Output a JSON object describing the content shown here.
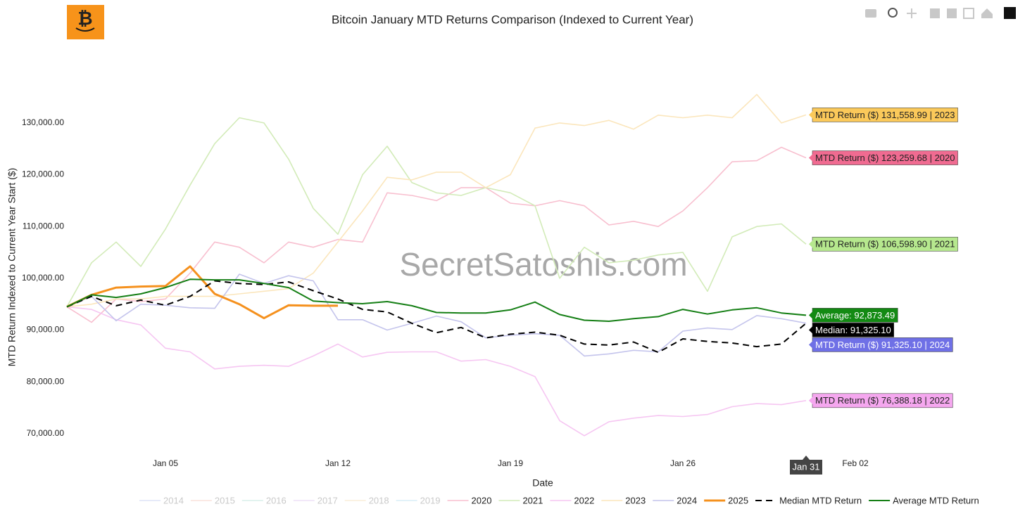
{
  "chart_data": {
    "type": "line",
    "title": "Bitcoin January MTD Returns Comparison (Indexed to Current Year)",
    "xlabel": "Date",
    "ylabel": "MTD Return Indexed to Current Year Start ($)",
    "watermark": "SecretSatoshis.com",
    "hover_label": "Jan 31",
    "legend": "bottom",
    "x": [
      "Jan 01",
      "Jan 02",
      "Jan 03",
      "Jan 04",
      "Jan 05",
      "Jan 06",
      "Jan 07",
      "Jan 08",
      "Jan 09",
      "Jan 10",
      "Jan 11",
      "Jan 12",
      "Jan 13",
      "Jan 14",
      "Jan 15",
      "Jan 16",
      "Jan 17",
      "Jan 18",
      "Jan 19",
      "Jan 20",
      "Jan 21",
      "Jan 22",
      "Jan 23",
      "Jan 24",
      "Jan 25",
      "Jan 26",
      "Jan 27",
      "Jan 28",
      "Jan 29",
      "Jan 30",
      "Jan 31"
    ],
    "xlim": [
      "Jan 01",
      "Feb 08"
    ],
    "xticks": [
      "Jan 05",
      "Jan 12",
      "Jan 19",
      "Jan 26",
      "Feb 02"
    ],
    "ylim": [
      65500,
      142200
    ],
    "yticks": [
      {
        "value": 70000,
        "label": "70,000.00"
      },
      {
        "value": 80000,
        "label": "80,000.00"
      },
      {
        "value": 90000,
        "label": "90,000.00"
      },
      {
        "value": 100000,
        "label": "100,000.00"
      },
      {
        "value": 110000,
        "label": "110,000.00"
      },
      {
        "value": 120000,
        "label": "120,000.00"
      },
      {
        "value": 130000,
        "label": "130,000.00"
      }
    ],
    "series": [
      {
        "name": "2014",
        "color": "#c9d1f2",
        "visible": false
      },
      {
        "name": "2015",
        "color": "#f7cfc4",
        "visible": false
      },
      {
        "name": "2016",
        "color": "#bfe6dc",
        "visible": false
      },
      {
        "name": "2017",
        "color": "#e3cdf2",
        "visible": false
      },
      {
        "name": "2018",
        "color": "#f8e3c0",
        "visible": false
      },
      {
        "name": "2019",
        "color": "#bfe3f2",
        "visible": false
      },
      {
        "name": "2020",
        "color": "#f8bfcf",
        "visible": true,
        "width": 1.6,
        "values": [
          94500,
          91500,
          96000,
          95500,
          96000,
          101000,
          107000,
          106000,
          103000,
          107000,
          106000,
          107500,
          107000,
          116500,
          116000,
          115000,
          117500,
          117500,
          114500,
          114000,
          115000,
          114000,
          110300,
          111000,
          110000,
          113000,
          117500,
          122500,
          122700,
          125300,
          123259.68
        ]
      },
      {
        "name": "2021",
        "color": "#d2ebb8",
        "visible": true,
        "width": 1.6,
        "values": [
          94500,
          103000,
          107000,
          102300,
          109500,
          118000,
          126000,
          131000,
          130000,
          123000,
          113500,
          108500,
          120000,
          125500,
          118500,
          116500,
          116000,
          117500,
          116500,
          114000,
          100000,
          106000,
          103000,
          103500,
          104500,
          105000,
          97500,
          108000,
          110000,
          110500,
          106598.9
        ]
      },
      {
        "name": "2022",
        "color": "#f6c6f2",
        "visible": true,
        "width": 1.6,
        "values": [
          94500,
          94000,
          92000,
          91000,
          86500,
          85800,
          82500,
          83000,
          83200,
          83000,
          85000,
          87300,
          84800,
          85700,
          85800,
          85800,
          84000,
          84300,
          83000,
          81000,
          72500,
          69600,
          72300,
          73000,
          73500,
          73300,
          73700,
          75200,
          75800,
          75600,
          76388.18
        ]
      },
      {
        "name": "2023",
        "color": "#fbe6bc",
        "visible": true,
        "width": 1.6,
        "values": [
          94500,
          95000,
          96000,
          96000,
          96500,
          96500,
          96500,
          97000,
          97500,
          98000,
          101000,
          107000,
          113000,
          119500,
          119000,
          120500,
          120500,
          117500,
          120000,
          129000,
          130000,
          129500,
          130500,
          128800,
          131500,
          131000,
          131500,
          131000,
          135500,
          130000,
          131558.99
        ]
      },
      {
        "name": "2024",
        "color": "#c4c4ec",
        "visible": true,
        "width": 1.6,
        "values": [
          94500,
          96500,
          91800,
          95000,
          94800,
          94300,
          94200,
          100800,
          99000,
          100500,
          99500,
          92000,
          92000,
          90000,
          91300,
          92700,
          91600,
          88500,
          89000,
          89300,
          89000,
          85000,
          85400,
          86100,
          85800,
          89800,
          90400,
          90100,
          92800,
          92200,
          91325.1
        ]
      },
      {
        "name": "2025",
        "color": "#f5911e",
        "visible": true,
        "width": 3,
        "values": [
          94500,
          96800,
          98200,
          98400,
          98500,
          102300,
          97000,
          95000,
          92300,
          94800,
          94700,
          94700,
          null,
          null,
          null,
          null,
          null,
          null,
          null,
          null,
          null,
          null,
          null,
          null,
          null,
          null,
          null,
          null,
          null,
          null,
          null
        ]
      },
      {
        "name": "Median MTD Return",
        "color": "#000000",
        "visible": true,
        "width": 2,
        "dash": "dash",
        "values": [
          94500,
          96500,
          94700,
          95800,
          94800,
          96500,
          99500,
          99000,
          98800,
          99300,
          97600,
          96000,
          94000,
          93500,
          91300,
          89500,
          90500,
          88500,
          89200,
          89600,
          89000,
          87300,
          87100,
          87700,
          85700,
          88300,
          87800,
          87500,
          86800,
          87300,
          91325.1
        ]
      },
      {
        "name": "Average MTD Return",
        "color": "#157f15",
        "visible": true,
        "width": 2,
        "values": [
          94500,
          96800,
          96300,
          97000,
          98200,
          99800,
          99700,
          99700,
          99000,
          98200,
          95600,
          95300,
          95100,
          95500,
          94700,
          93400,
          93300,
          93300,
          93900,
          95400,
          93000,
          91900,
          91700,
          92200,
          92600,
          94000,
          93100,
          93900,
          94300,
          93300,
          92873.49
        ]
      }
    ],
    "annotations": [
      {
        "text": "MTD Return ($) 131,558.99 | 2023",
        "x": "Jan 31",
        "y": 131558.99,
        "bgcolor": "#fbc95a",
        "fontcolor": "#222222"
      },
      {
        "text": "MTD Return ($) 123,259.68 | 2020",
        "x": "Jan 31",
        "y": 123259.68,
        "bgcolor": "#f06b91",
        "fontcolor": "#222222"
      },
      {
        "text": "MTD Return ($) 106,598.90 | 2021",
        "x": "Jan 31",
        "y": 106598.9,
        "bgcolor": "#b6e88e",
        "fontcolor": "#222222"
      },
      {
        "text": "Average: 92,873.49",
        "x": "Jan 31",
        "y": 92873.49,
        "bgcolor": "#138a13",
        "fontcolor": "#ffffff"
      },
      {
        "text": "Median: 91,325.10",
        "x": "Jan 31",
        "y": 91325.1,
        "bgcolor": "#000000",
        "fontcolor": "#ffffff"
      },
      {
        "text": "MTD Return ($) 91,325.10 | 2024",
        "x": "Jan 31",
        "y": 91325.1,
        "bgcolor": "#6f70e6",
        "fontcolor": "#ffffff"
      },
      {
        "text": "MTD Return ($) 76,388.18 | 2022",
        "x": "Jan 31",
        "y": 76388.18,
        "bgcolor": "#f5a7ef",
        "fontcolor": "#222222"
      }
    ]
  }
}
